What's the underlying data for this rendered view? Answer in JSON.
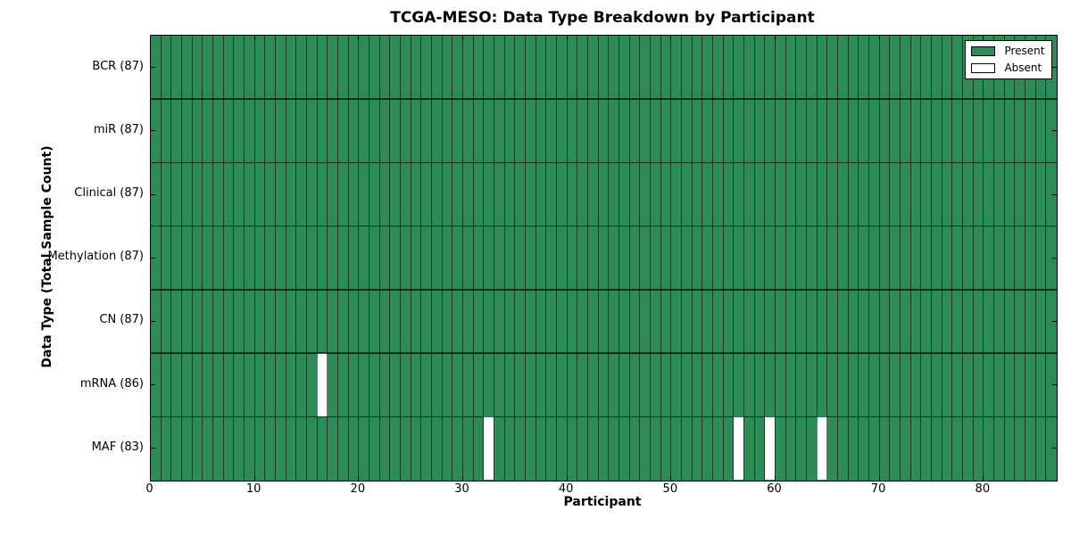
{
  "chart_data": {
    "type": "heatmap",
    "title": "TCGA-MESO: Data Type Breakdown by Participant",
    "xlabel": "Participant",
    "ylabel": "Data Type (Total Sample Count)",
    "n_participants": 87,
    "xlim": [
      0,
      87
    ],
    "x_ticks": [
      0,
      10,
      20,
      30,
      40,
      50,
      60,
      70,
      80
    ],
    "rows": [
      {
        "name": "BCR",
        "count": 87,
        "label": "BCR (87)",
        "absent_participants": []
      },
      {
        "name": "miR",
        "count": 87,
        "label": "miR (87)",
        "absent_participants": []
      },
      {
        "name": "Clinical",
        "count": 87,
        "label": "Clinical (87)",
        "absent_participants": []
      },
      {
        "name": "Methylation",
        "count": 87,
        "label": "Methylation (87)",
        "absent_participants": []
      },
      {
        "name": "CN",
        "count": 87,
        "label": "CN (87)",
        "absent_participants": []
      },
      {
        "name": "mRNA",
        "count": 86,
        "label": "mRNA (86)",
        "absent_participants": [
          16
        ]
      },
      {
        "name": "MAF",
        "count": 83,
        "label": "MAF (83)",
        "absent_participants": [
          32,
          56,
          59,
          64
        ]
      }
    ],
    "colors": {
      "present": "#2e8b57",
      "absent": "#ffffff"
    },
    "legend": {
      "position": "upper right",
      "entries": [
        {
          "label": "Present",
          "color": "#2e8b57"
        },
        {
          "label": "Absent",
          "color": "#ffffff"
        }
      ]
    },
    "grid": "cell-borders",
    "legend_position": "upper right"
  }
}
